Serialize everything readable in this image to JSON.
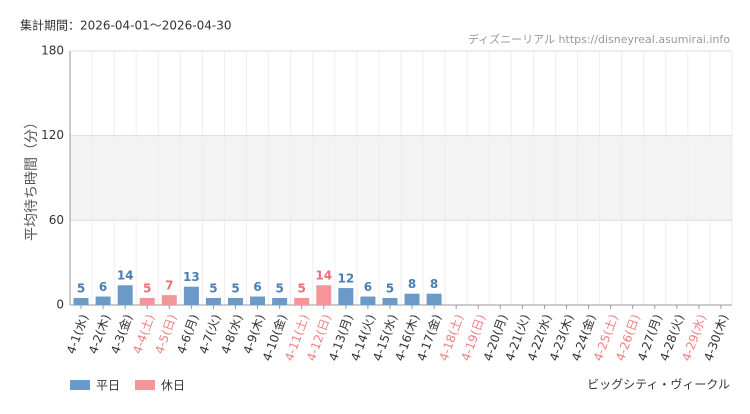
{
  "chart_data": {
    "type": "bar",
    "title": "集計期間：2026-04-01～2026-04-30",
    "source": "ディズニーリアル https://disneyreal.asumirai.info",
    "subtitle": "ビッグシティ・ヴィークル",
    "y_label": "平均待ち時間（分）",
    "categories": [
      "4-1(水)",
      "4-2(木)",
      "4-3(金)",
      "4-4(土)",
      "4-5(日)",
      "4-6(月)",
      "4-7(火)",
      "4-8(水)",
      "4-9(木)",
      "4-10(金)",
      "4-11(土)",
      "4-12(日)",
      "4-13(月)",
      "4-14(火)",
      "4-15(水)",
      "4-16(木)",
      "4-17(金)",
      "4-18(土)",
      "4-19(日)",
      "4-20(月)",
      "4-21(火)",
      "4-22(水)",
      "4-23(木)",
      "4-24(金)",
      "4-25(土)",
      "4-26(日)",
      "4-27(月)",
      "4-28(火)",
      "4-29(水)",
      "4-30(木)"
    ],
    "category_label_colors": [
      "#333",
      "#333",
      "#333",
      "#f08080",
      "#f08080",
      "#333",
      "#333",
      "#333",
      "#333",
      "#333",
      "#f08080",
      "#f08080",
      "#333",
      "#333",
      "#333",
      "#333",
      "#333",
      "#f08080",
      "#f08080",
      "#333",
      "#333",
      "#333",
      "#333",
      "#333",
      "#f08080",
      "#f08080",
      "#333",
      "#333",
      "#f08080",
      "#333"
    ],
    "series": [
      {
        "name": "平日",
        "color": "#6b9ac8",
        "label_color": "#4a7fb5",
        "values": [
          5,
          6,
          14,
          null,
          null,
          13,
          5,
          5,
          6,
          5,
          null,
          null,
          12,
          6,
          5,
          8,
          8,
          null,
          null,
          null,
          null,
          null,
          null,
          null,
          null,
          null,
          null,
          null,
          null,
          null
        ]
      },
      {
        "name": "休日",
        "color": "#f4959a",
        "label_color": "#e8707a",
        "values": [
          null,
          null,
          null,
          5,
          7,
          null,
          null,
          null,
          null,
          null,
          5,
          14,
          null,
          null,
          null,
          null,
          null,
          null,
          null,
          null,
          null,
          null,
          null,
          null,
          null,
          null,
          null,
          null,
          null,
          null
        ]
      }
    ],
    "ylim": [
      0,
      180
    ],
    "yticks": [
      0,
      60,
      120,
      180
    ],
    "grid": true
  }
}
